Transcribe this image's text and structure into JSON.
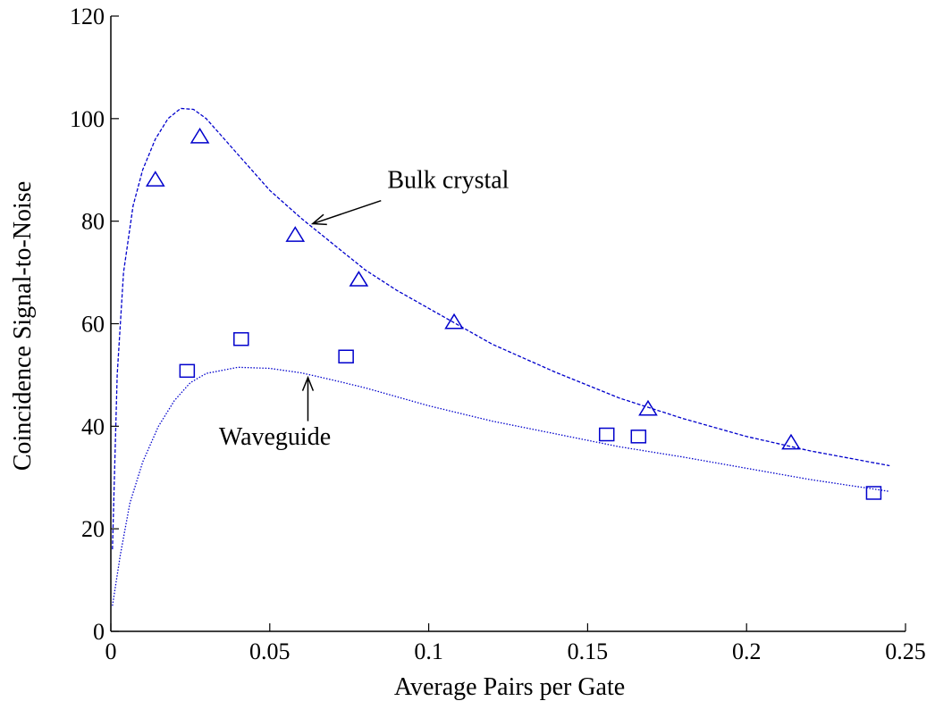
{
  "chart_data": {
    "type": "scatter",
    "xlabel": "Average Pairs per Gate",
    "ylabel": "Coincidence Signal-to-Noise",
    "xlim": [
      0,
      0.25
    ],
    "ylim": [
      0,
      120
    ],
    "x_ticks": [
      0,
      0.05,
      0.1,
      0.15,
      0.2,
      0.25
    ],
    "x_tick_labels": [
      "0",
      "0.05",
      "0.1",
      "0.15",
      "0.2",
      "0.25"
    ],
    "y_ticks": [
      0,
      20,
      40,
      60,
      80,
      100,
      120
    ],
    "y_tick_labels": [
      "0",
      "20",
      "40",
      "60",
      "80",
      "100",
      "120"
    ],
    "grid": false,
    "color": "#0000cc",
    "series": [
      {
        "marker": "triangle",
        "points": [
          [
            0.014,
            88.2
          ],
          [
            0.028,
            96.6
          ],
          [
            0.058,
            77.4
          ],
          [
            0.078,
            68.7
          ],
          [
            0.108,
            60.4
          ],
          [
            0.169,
            43.5
          ],
          [
            0.214,
            36.9
          ]
        ]
      },
      {
        "marker": "square",
        "points": [
          [
            0.024,
            50.8
          ],
          [
            0.041,
            57.0
          ],
          [
            0.074,
            53.6
          ],
          [
            0.156,
            38.4
          ],
          [
            0.166,
            38.0
          ],
          [
            0.24,
            27.0
          ]
        ]
      },
      {
        "line": "dashed",
        "points": [
          [
            0.0005,
            16
          ],
          [
            0.002,
            50
          ],
          [
            0.004,
            70
          ],
          [
            0.007,
            83
          ],
          [
            0.01,
            90
          ],
          [
            0.014,
            96
          ],
          [
            0.018,
            100
          ],
          [
            0.022,
            102
          ],
          [
            0.026,
            101.8
          ],
          [
            0.03,
            100
          ],
          [
            0.035,
            96.5
          ],
          [
            0.04,
            93
          ],
          [
            0.05,
            86
          ],
          [
            0.06,
            80.5
          ],
          [
            0.07,
            75.5
          ],
          [
            0.08,
            70.5
          ],
          [
            0.09,
            66.5
          ],
          [
            0.1,
            63
          ],
          [
            0.12,
            56
          ],
          [
            0.14,
            50.5
          ],
          [
            0.16,
            45.5
          ],
          [
            0.18,
            41.5
          ],
          [
            0.2,
            38
          ],
          [
            0.22,
            35.2
          ],
          [
            0.245,
            32.3
          ]
        ]
      },
      {
        "line": "dotted",
        "points": [
          [
            0.0005,
            5
          ],
          [
            0.003,
            15
          ],
          [
            0.006,
            25
          ],
          [
            0.01,
            33
          ],
          [
            0.015,
            40
          ],
          [
            0.02,
            45
          ],
          [
            0.025,
            48.5
          ],
          [
            0.03,
            50.3
          ],
          [
            0.04,
            51.5
          ],
          [
            0.05,
            51.3
          ],
          [
            0.06,
            50.4
          ],
          [
            0.07,
            49
          ],
          [
            0.08,
            47.5
          ],
          [
            0.1,
            44
          ],
          [
            0.12,
            41
          ],
          [
            0.14,
            38.5
          ],
          [
            0.16,
            36
          ],
          [
            0.18,
            34
          ],
          [
            0.2,
            31.8
          ],
          [
            0.22,
            29.6
          ],
          [
            0.245,
            27.3
          ]
        ]
      }
    ],
    "annotations": [
      {
        "text": "Bulk crystal",
        "text_at": [
          0.087,
          86.5
        ],
        "arrow_from": [
          0.085,
          84.0
        ],
        "arrow_to": [
          0.0635,
          79.5
        ]
      },
      {
        "text": "Waveguide",
        "text_at": [
          0.034,
          36.4
        ],
        "arrow_from": [
          0.062,
          41.0
        ],
        "arrow_to": [
          0.062,
          49.5
        ]
      }
    ]
  }
}
